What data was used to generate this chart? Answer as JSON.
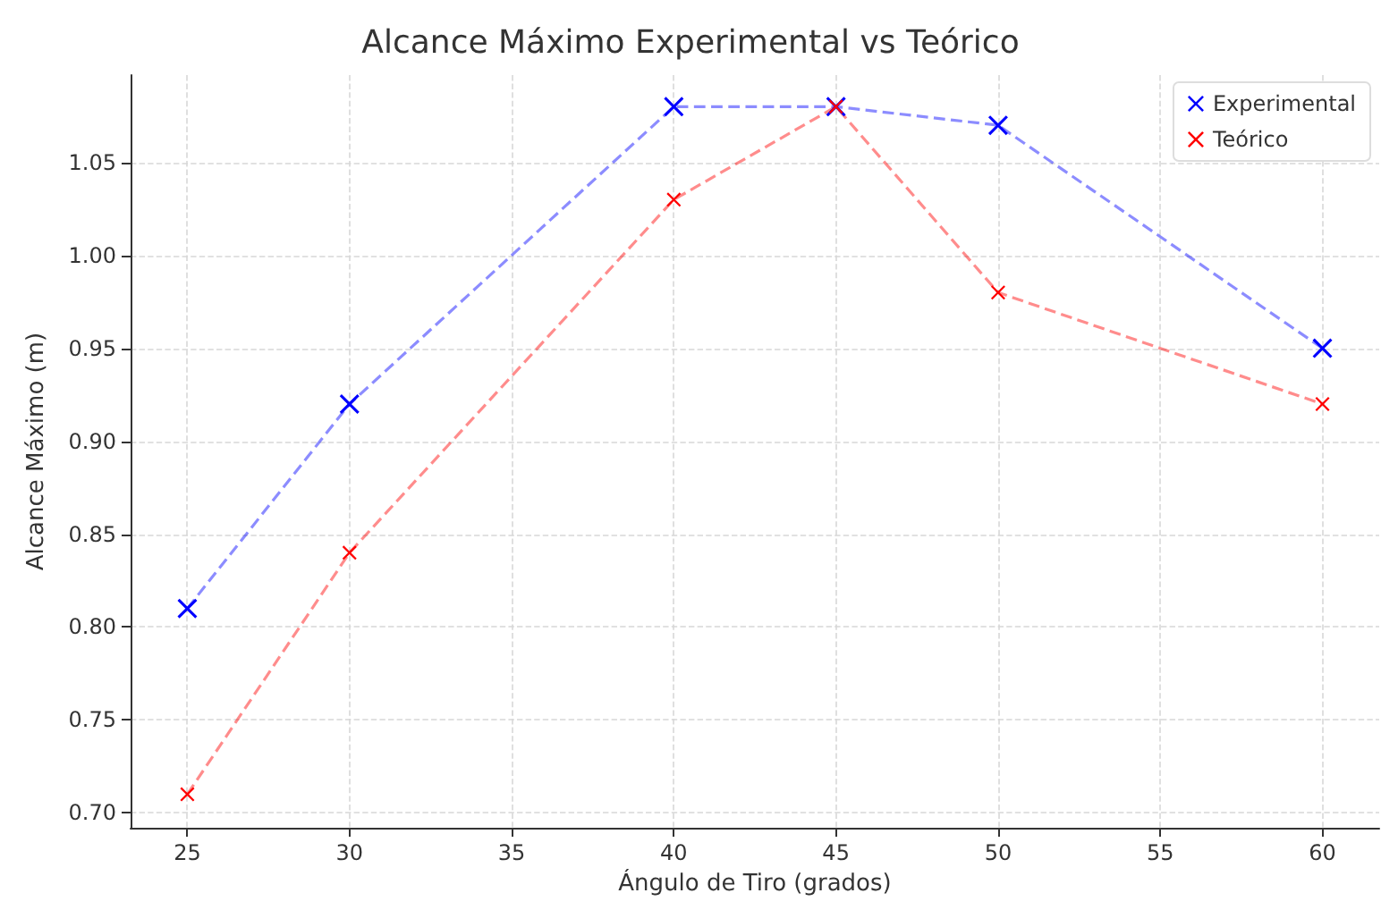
{
  "chart_data": {
    "type": "line",
    "title": "Alcance Máximo Experimental vs Teórico",
    "xlabel": "Ángulo de Tiro (grados)",
    "ylabel": "Alcance Máximo (m)",
    "x": [
      25,
      30,
      40,
      45,
      50,
      60
    ],
    "series": [
      {
        "name": "Experimental",
        "color": "#0000ff",
        "values": [
          0.81,
          0.92,
          1.08,
          1.08,
          1.07,
          0.95
        ]
      },
      {
        "name": "Teórico",
        "color": "#ff0000",
        "values": [
          0.71,
          0.84,
          1.03,
          1.08,
          0.98,
          0.92
        ]
      }
    ],
    "xlim": [
      23.25,
      61.75
    ],
    "xticks": [
      25,
      30,
      35,
      40,
      45,
      50,
      55,
      60
    ],
    "ylim": [
      0.692,
      1.097
    ],
    "yticks": [
      {
        "value": 0.7,
        "label": "0.70"
      },
      0.75,
      {
        "value": 0.8,
        "label": "0.80"
      },
      0.85,
      {
        "value": 0.9,
        "label": "0.90"
      },
      0.95,
      {
        "value": 1,
        "label": "1.00"
      },
      1.05
    ],
    "grid": true,
    "legend": "top right",
    "marker": "cross",
    "line_style": "dashed"
  }
}
